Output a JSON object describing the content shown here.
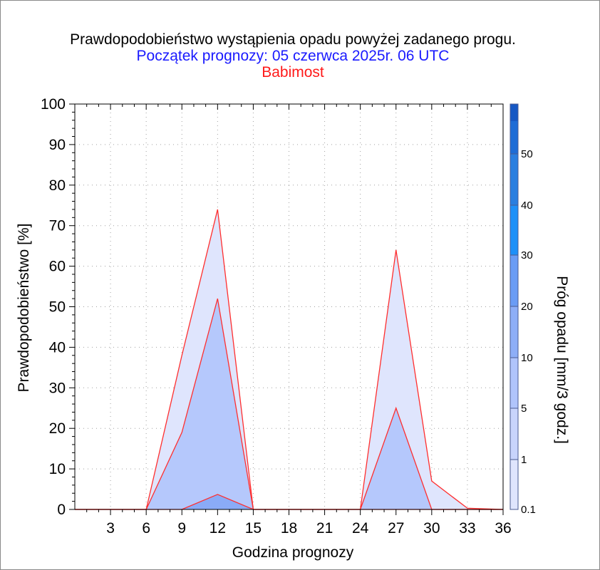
{
  "chart_data": {
    "type": "area",
    "title": "Prawdopodobieństwo wystąpienia opadu powyżej zadanego progu.",
    "subtitle": "Początek prognozy: 05 czerwca 2025r. 06 UTC",
    "location": "Babimost",
    "xlabel": "Godzina prognozy",
    "ylabel": "Prawdopodobieństwo [%]",
    "colorbar_label": "Próg opadu [mm/3 godz.]",
    "xlim": [
      0,
      36
    ],
    "ylim": [
      0,
      100
    ],
    "x_ticks": [
      3,
      6,
      9,
      12,
      15,
      18,
      21,
      24,
      27,
      30,
      33,
      36
    ],
    "y_ticks": [
      0,
      10,
      20,
      30,
      40,
      50,
      60,
      70,
      80,
      90,
      100
    ],
    "grid": true,
    "x": [
      0,
      3,
      6,
      9,
      12,
      15,
      18,
      21,
      24,
      27,
      30,
      33,
      36
    ],
    "series": [
      {
        "threshold": "0.1",
        "color": "#dfe5fd",
        "values": [
          0,
          0,
          0,
          38,
          74,
          0,
          0,
          0,
          0,
          64,
          7,
          0.3,
          0
        ]
      },
      {
        "threshold": "1",
        "color": "#b5c8fc",
        "values": [
          0,
          0,
          0,
          19,
          52,
          0,
          0,
          0,
          0,
          25,
          0,
          0,
          0
        ]
      },
      {
        "threshold": "5",
        "color": "#8aabf7",
        "values": [
          0,
          0,
          0,
          0,
          3.7,
          0,
          0,
          0,
          0,
          0,
          0,
          0,
          0
        ]
      }
    ],
    "colorbar": {
      "labels": [
        "0.1",
        "1",
        "5",
        "10",
        "20",
        "30",
        "40",
        "50"
      ],
      "colors": [
        "#dfe5fd",
        "#c8d4fc",
        "#b0c4fb",
        "#8eaef7",
        "#6a9cf5",
        "#1e90f8",
        "#2a7ee0",
        "#1e6cd6",
        "#1658c4",
        "#0b3fa4"
      ]
    }
  }
}
